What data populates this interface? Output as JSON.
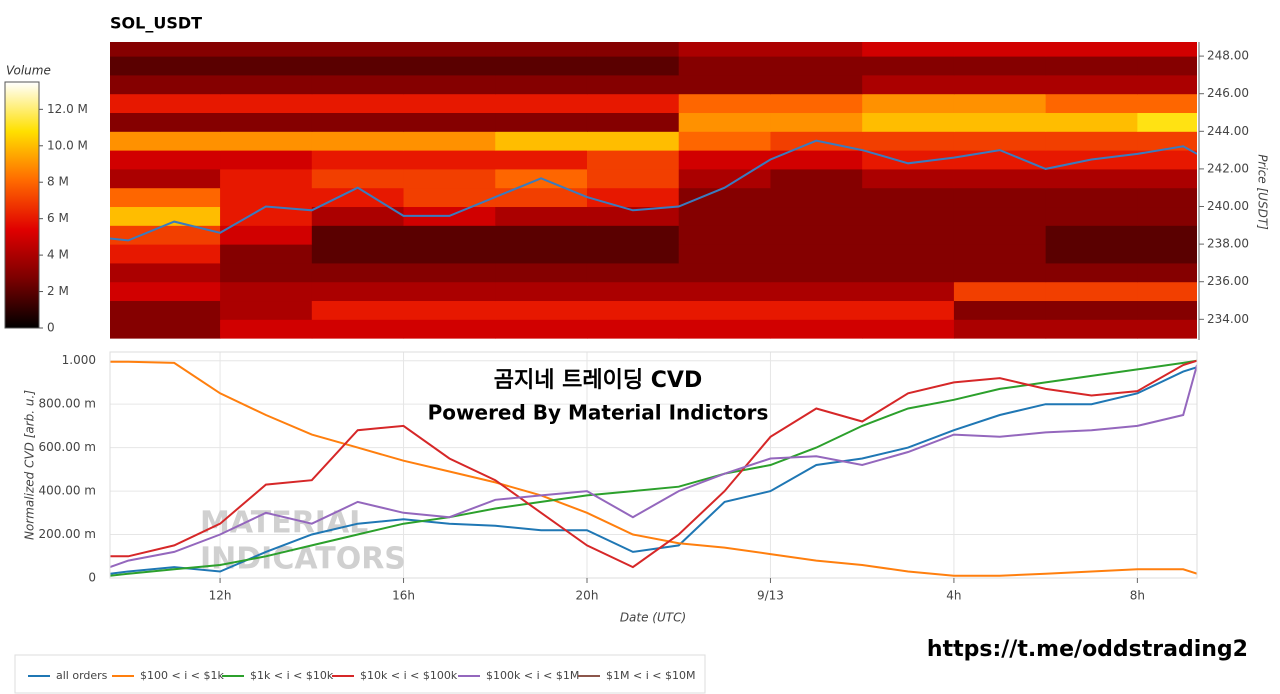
{
  "chart_data": [
    {
      "type": "heatmap",
      "title": "SOL_USDT",
      "ylabel": "Price [USDT]",
      "colorbar_title": "Volume",
      "xlim": [
        9.6,
        33.3
      ],
      "ylim": [
        232.9,
        248.75
      ],
      "yticks": [
        {
          "value": 234,
          "label": "234.00"
        },
        {
          "value": 236,
          "label": "236.00"
        },
        {
          "value": 238,
          "label": "238.00"
        },
        {
          "value": 240,
          "label": "240.00"
        },
        {
          "value": 242,
          "label": "242.00"
        },
        {
          "value": 244,
          "label": "244.00"
        },
        {
          "value": 246,
          "label": "246.00"
        },
        {
          "value": 248,
          "label": "248.00"
        }
      ],
      "x_bins": [
        9.6,
        12,
        14,
        16,
        18,
        20,
        22,
        24,
        26,
        28,
        30,
        32,
        33.3
      ],
      "y_bins": [
        233,
        234,
        235,
        236,
        237,
        238,
        239,
        240,
        241,
        242,
        243,
        244,
        245,
        246,
        247,
        248,
        249
      ],
      "values": [
        [
          3,
          5,
          5,
          5,
          5,
          5,
          5,
          5,
          5,
          4,
          4,
          4
        ],
        [
          3,
          4,
          6,
          6,
          6,
          6,
          6,
          6,
          6,
          3,
          3,
          3
        ],
        [
          5,
          4,
          4,
          4,
          4,
          4,
          4,
          4,
          4,
          7,
          7,
          7
        ],
        [
          4,
          3,
          3,
          3,
          3,
          3,
          3,
          3,
          3,
          3,
          3,
          3
        ],
        [
          6,
          3,
          2,
          2,
          2,
          2,
          3,
          3,
          3,
          3,
          2,
          2
        ],
        [
          7,
          5,
          2,
          2,
          2,
          2,
          3,
          3,
          3,
          3,
          2,
          2
        ],
        [
          10,
          6,
          4,
          5,
          4,
          4,
          3,
          3,
          3,
          3,
          3,
          3
        ],
        [
          8,
          6,
          6,
          7,
          7,
          6,
          3,
          3,
          3,
          3,
          3,
          3
        ],
        [
          4,
          6,
          7,
          7,
          8,
          7,
          4,
          3,
          4,
          4,
          4,
          4
        ],
        [
          5,
          5,
          6,
          6,
          6,
          7,
          5,
          5,
          6,
          6,
          6,
          6
        ],
        [
          9,
          9,
          9,
          9,
          10,
          10,
          8,
          7,
          7,
          7,
          7,
          7
        ],
        [
          3,
          3,
          3,
          3,
          3,
          3,
          9,
          9,
          10,
          10,
          10,
          11
        ],
        [
          6,
          6,
          6,
          6,
          6,
          6,
          8,
          8,
          9,
          9,
          8,
          8
        ],
        [
          3,
          3,
          3,
          3,
          3,
          3,
          3,
          3,
          4,
          4,
          4,
          4
        ],
        [
          2,
          2,
          2,
          2,
          2,
          2,
          3,
          3,
          3,
          3,
          3,
          3
        ],
        [
          3,
          3,
          3,
          3,
          3,
          3,
          4,
          4,
          5,
          5,
          5,
          5
        ]
      ],
      "clim": [
        0,
        13.5
      ],
      "cticks": [
        0,
        {
          "value": 2,
          "label": "2 M"
        },
        {
          "value": 4,
          "label": "4 M"
        },
        {
          "value": 6,
          "label": "6 M"
        },
        {
          "value": 8,
          "label": "8 M"
        },
        {
          "value": 10,
          "label": "10.0 M"
        },
        {
          "value": 12,
          "label": "12.0 M"
        }
      ],
      "colorscale": [
        "#000000",
        "#7a0000",
        "#e00000",
        "#ff6a00",
        "#ffe000",
        "#ffffff"
      ],
      "price_line": {
        "color": "#3a7bbf",
        "x": [
          9.6,
          10,
          11,
          12,
          13,
          14,
          15,
          16,
          17,
          18,
          19,
          20,
          21,
          22,
          23,
          24,
          25,
          26,
          27,
          28,
          29,
          30,
          31,
          32,
          33,
          33.3
        ],
        "values": [
          238.3,
          238.2,
          239.2,
          238.6,
          240,
          239.8,
          241,
          239.5,
          239.5,
          240.5,
          241.5,
          240.5,
          239.8,
          240,
          241,
          242.5,
          243.5,
          243,
          242.3,
          242.6,
          243,
          242,
          242.5,
          242.8,
          243.2,
          242.8
        ]
      }
    },
    {
      "type": "line",
      "xlabel": "Date (UTC)",
      "ylabel": "Normalized CVD [arb. u.]",
      "annotations": [
        "곰지네 트레이딩 CVD",
        "Powered By Material Indictors"
      ],
      "watermark": [
        "MATERIAL",
        "INDICATORS"
      ],
      "xlim": [
        9.6,
        33.3
      ],
      "ylim": [
        0,
        1.04
      ],
      "grid": true,
      "xticks": [
        {
          "value": 12,
          "label": "12h"
        },
        {
          "value": 16,
          "label": "16h"
        },
        {
          "value": 20,
          "label": "20h"
        },
        {
          "value": 24,
          "label": "9/13"
        },
        {
          "value": 28,
          "label": "4h"
        },
        {
          "value": 32,
          "label": "8h"
        }
      ],
      "yticks": [
        0,
        {
          "value": 0.2,
          "label": "200.00 m"
        },
        {
          "value": 0.4,
          "label": "400.00 m"
        },
        {
          "value": 0.6,
          "label": "600.00 m"
        },
        {
          "value": 0.8,
          "label": "800.00 m"
        },
        {
          "value": 1,
          "label": "1.000"
        }
      ],
      "x": [
        9.6,
        10,
        11,
        12,
        13,
        14,
        15,
        16,
        17,
        18,
        19,
        20,
        21,
        22,
        23,
        24,
        25,
        26,
        27,
        28,
        29,
        30,
        31,
        32,
        33,
        33.3
      ],
      "series": [
        {
          "name": "all orders",
          "color": "#1f77b4",
          "values": [
            0.02,
            0.03,
            0.05,
            0.03,
            0.12,
            0.2,
            0.25,
            0.27,
            0.25,
            0.24,
            0.22,
            0.22,
            0.12,
            0.15,
            0.35,
            0.4,
            0.52,
            0.55,
            0.6,
            0.68,
            0.75,
            0.8,
            0.8,
            0.85,
            0.95,
            0.97
          ]
        },
        {
          "name": "$100 < i < $1k",
          "color": "#ff7f0e",
          "values": [
            0.995,
            0.995,
            0.99,
            0.85,
            0.75,
            0.66,
            0.6,
            0.54,
            0.49,
            0.44,
            0.38,
            0.3,
            0.2,
            0.16,
            0.14,
            0.11,
            0.08,
            0.06,
            0.03,
            0.01,
            0.01,
            0.02,
            0.03,
            0.04,
            0.04,
            0.02
          ]
        },
        {
          "name": "$1k < i < $10k",
          "color": "#2ca02c",
          "values": [
            0.01,
            0.02,
            0.04,
            0.06,
            0.1,
            0.15,
            0.2,
            0.25,
            0.28,
            0.32,
            0.35,
            0.38,
            0.4,
            0.42,
            0.48,
            0.52,
            0.6,
            0.7,
            0.78,
            0.82,
            0.87,
            0.9,
            0.93,
            0.96,
            0.99,
            1.0
          ]
        },
        {
          "name": "$10k < i < $100k",
          "color": "#d62728",
          "values": [
            0.1,
            0.1,
            0.15,
            0.25,
            0.43,
            0.45,
            0.68,
            0.7,
            0.55,
            0.45,
            0.3,
            0.15,
            0.05,
            0.2,
            0.4,
            0.65,
            0.78,
            0.72,
            0.85,
            0.9,
            0.92,
            0.87,
            0.84,
            0.86,
            0.98,
            1.0
          ]
        },
        {
          "name": "$100k < i < $1M",
          "color": "#9467bd",
          "values": [
            0.05,
            0.08,
            0.12,
            0.2,
            0.3,
            0.25,
            0.35,
            0.3,
            0.28,
            0.36,
            0.38,
            0.4,
            0.28,
            0.4,
            0.48,
            0.55,
            0.56,
            0.52,
            0.58,
            0.66,
            0.65,
            0.67,
            0.68,
            0.7,
            0.75,
            0.98
          ]
        },
        {
          "name": "$1M < i < $10M",
          "color": "#8c564b",
          "values": [
            null,
            null,
            null,
            null,
            null,
            null,
            null,
            null,
            null,
            null,
            null,
            null,
            null,
            null,
            null,
            null,
            null,
            null,
            null,
            null,
            null,
            null,
            null,
            null,
            null,
            null
          ]
        }
      ]
    }
  ],
  "footer": "https://t.me/oddstrading2"
}
